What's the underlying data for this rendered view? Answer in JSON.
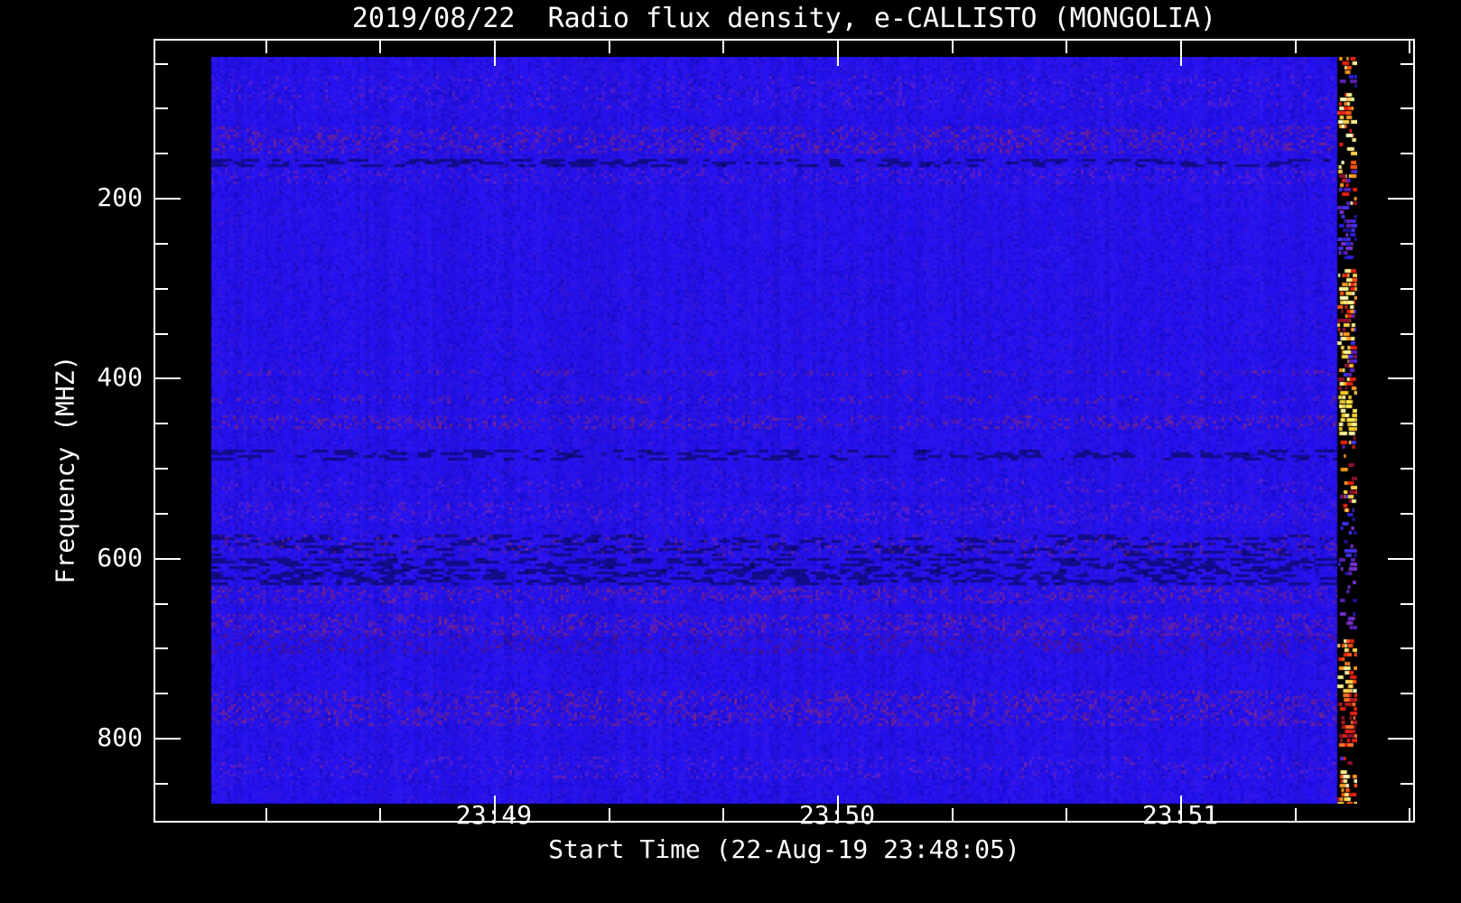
{
  "window": {
    "background": "#000000",
    "foreground": "#ffffff"
  },
  "chart_data": {
    "type": "heatmap",
    "subtype": "radio-spectrogram",
    "title": "2019/08/22  Radio flux density, e-CALLISTO (MONGOLIA)",
    "xlabel": "Start Time (22-Aug-19 23:48:05)",
    "ylabel": "Frequency (MHZ)",
    "instrument": "e-CALLISTO",
    "station": "MONGOLIA",
    "date": "2019/08/22",
    "start_time": "23:48:05",
    "y_axis": {
      "unit": "MHz",
      "range": [
        44,
        873
      ],
      "direction": "increasing-downward",
      "major_ticks": [
        200,
        400,
        600,
        800
      ],
      "minor_step": 50,
      "grid": false
    },
    "x_axis": {
      "major_ticks": [
        {
          "seconds_after_2348": 60,
          "label": "23:49"
        },
        {
          "seconds_after_2348": 120,
          "label": "23:50"
        },
        {
          "seconds_after_2348": 180,
          "label": "23:51"
        }
      ],
      "minor_step_seconds": 20,
      "data_window_seconds": [
        11,
        211
      ],
      "grid": false
    },
    "colors": {
      "background": "#000000",
      "axis_and_text": "#ffffff",
      "base_blue": "#2512ef"
    },
    "legend": "none",
    "description": "Quiet blue background flux with faint horizontal RFI bands; a narrow column of strong mixed-color interference (yellow/orange/red/blue on black) at the right edge of the data (~23:51:20-23:51:31).",
    "bands": [
      {
        "f0": 65,
        "f1": 99,
        "type": "purple",
        "level": 0.25
      },
      {
        "f0": 121,
        "f1": 149,
        "type": "red",
        "level": 0.5
      },
      {
        "f0": 157,
        "f1": 165,
        "type": "dark",
        "level": 0.65
      },
      {
        "f0": 167,
        "f1": 185,
        "type": "purple",
        "level": 0.35
      },
      {
        "f0": 392,
        "f1": 398,
        "type": "red",
        "level": 0.35
      },
      {
        "f0": 420,
        "f1": 428,
        "type": "red",
        "level": 0.3
      },
      {
        "f0": 442,
        "f1": 456,
        "type": "red",
        "level": 0.5
      },
      {
        "f0": 480,
        "f1": 490,
        "type": "dark",
        "level": 0.5
      },
      {
        "f0": 512,
        "f1": 527,
        "type": "purple",
        "level": 0.25
      },
      {
        "f0": 538,
        "f1": 562,
        "type": "purple",
        "level": 0.4
      },
      {
        "f0": 574,
        "f1": 597,
        "type": "darkspeck",
        "level": 0.45
      },
      {
        "f0": 600,
        "f1": 630,
        "type": "dark",
        "level": 0.7
      },
      {
        "f0": 632,
        "f1": 650,
        "type": "red",
        "level": 0.5
      },
      {
        "f0": 663,
        "f1": 685,
        "type": "red",
        "level": 0.55
      },
      {
        "f0": 686,
        "f1": 705,
        "type": "darkred",
        "level": 0.45
      },
      {
        "f0": 748,
        "f1": 785,
        "type": "red",
        "level": 0.5
      },
      {
        "f0": 821,
        "f1": 845,
        "type": "purple",
        "level": 0.3
      }
    ],
    "stripe": {
      "time_fraction_start": 0.9826,
      "palettes": {
        "hot": [
          "#fff290",
          "#ffd24a",
          "#ff9a20",
          "#ff5510",
          "#e82010",
          "#ffffc0"
        ],
        "yellow": [
          "#fff8a0",
          "#ffee50",
          "#ffd020",
          "#e8c030"
        ],
        "cool": [
          "#2a20e0",
          "#4030f0",
          "#5a20b8",
          "#1c1290",
          "#7a30d0"
        ],
        "red": [
          "#e02010",
          "#b01820",
          "#8c1030",
          "#ff7020"
        ],
        "mixed": [
          "#ffd24a",
          "#ff9a20",
          "#e82010",
          "#8c1030",
          "#4030f0",
          "#5a20b8",
          "#fff290"
        ]
      },
      "zones": [
        {
          "f0": 43,
          "f1": 59,
          "palette": "hot",
          "density": 0.5
        },
        {
          "f0": 59,
          "f1": 81,
          "palette": "cool",
          "density": 0.5
        },
        {
          "f0": 81,
          "f1": 121,
          "palette": "hot",
          "density": 0.85
        },
        {
          "f0": 121,
          "f1": 166,
          "palette": "hot",
          "density": 0.3
        },
        {
          "f0": 166,
          "f1": 206,
          "palette": "mixed",
          "density": 0.6
        },
        {
          "f0": 206,
          "f1": 266,
          "palette": "cool",
          "density": 0.6
        },
        {
          "f0": 266,
          "f1": 276,
          "palette": "cool",
          "density": 0.08
        },
        {
          "f0": 276,
          "f1": 321,
          "palette": "hot",
          "density": 0.9
        },
        {
          "f0": 321,
          "f1": 412,
          "palette": "mixed",
          "density": 0.75
        },
        {
          "f0": 412,
          "f1": 460,
          "palette": "yellow",
          "density": 0.85
        },
        {
          "f0": 460,
          "f1": 507,
          "palette": "mixed",
          "density": 0.15
        },
        {
          "f0": 507,
          "f1": 547,
          "palette": "mixed",
          "density": 0.5
        },
        {
          "f0": 547,
          "f1": 592,
          "palette": "cool",
          "density": 0.35
        },
        {
          "f0": 592,
          "f1": 688,
          "palette": "cool",
          "density": 0.3
        },
        {
          "f0": 688,
          "f1": 748,
          "palette": "hot",
          "density": 0.7
        },
        {
          "f0": 748,
          "f1": 808,
          "palette": "red",
          "density": 0.75
        },
        {
          "f0": 808,
          "f1": 838,
          "palette": "mixed",
          "density": 0.2
        },
        {
          "f0": 838,
          "f1": 873,
          "palette": "hot",
          "density": 0.8
        }
      ]
    }
  }
}
